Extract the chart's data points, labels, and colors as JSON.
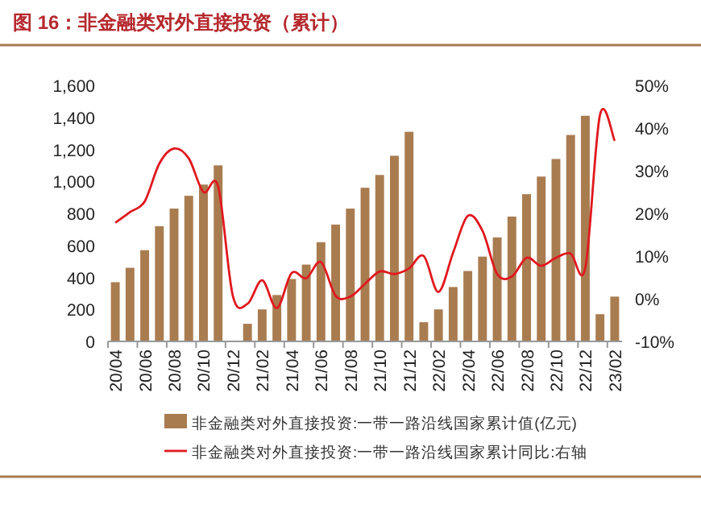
{
  "chart_data": {
    "type": "bar",
    "title": "图 16：非金融类对外直接投资（累计）",
    "categories": [
      "20/04",
      null,
      "20/06",
      null,
      "20/08",
      null,
      "20/10",
      null,
      "20/12",
      null,
      "21/02",
      null,
      "21/04",
      null,
      "21/06",
      null,
      "21/08",
      null,
      "21/10",
      null,
      "21/12",
      null,
      "22/02",
      null,
      "22/04",
      null,
      "22/06",
      null,
      "22/08",
      null,
      "22/10",
      null,
      "22/12",
      null,
      "23/02"
    ],
    "series": [
      {
        "name": "非金融类对外直接投资:一带一路沿线国家累计值(亿元)",
        "color": "#a97c50",
        "values": [
          370,
          460,
          570,
          720,
          830,
          910,
          980,
          1100,
          null,
          110,
          200,
          290,
          390,
          480,
          620,
          730,
          830,
          960,
          1040,
          1160,
          1310,
          120,
          200,
          340,
          440,
          530,
          650,
          780,
          920,
          1030,
          1140,
          1290,
          1410,
          170,
          280
        ]
      },
      {
        "name": "非金融类对外直接投资:一带一路沿线国家累计同比:右轴",
        "type": "line",
        "axis": "y2",
        "color": "#e0191f",
        "values": [
          17.8,
          20.3,
          22.8,
          31.7,
          35.2,
          32.9,
          25.0,
          26.3,
          0.7,
          -1.2,
          4.3,
          -2.2,
          6.0,
          4.8,
          8.6,
          0.7,
          0.5,
          3.5,
          6.4,
          5.8,
          7.1,
          10.0,
          1.6,
          10.8,
          19.4,
          15.9,
          5.8,
          5.2,
          9.6,
          7.7,
          9.6,
          10.6,
          7.3,
          43.1,
          37.0
        ]
      }
    ],
    "ylim": [
      0,
      1600
    ],
    "yticks": [
      0,
      200,
      400,
      600,
      800,
      {
        "value": 1000,
        "label": "1,000"
      },
      {
        "value": 1200,
        "label": "1,200"
      },
      {
        "value": 1400,
        "label": "1,400"
      },
      {
        "value": 1600,
        "label": "1,600"
      }
    ],
    "y2lim": [
      -10,
      50
    ],
    "y2ticks": [
      {
        "value": -10,
        "label": "-10%"
      },
      {
        "value": 0,
        "label": "0%"
      },
      {
        "value": 10,
        "label": "10%"
      },
      {
        "value": 20,
        "label": "20%"
      },
      {
        "value": 30,
        "label": "30%"
      },
      {
        "value": 40,
        "label": "40%"
      },
      {
        "value": 50,
        "label": "50%"
      }
    ],
    "legend": "bottom",
    "grid": false,
    "marker": "none",
    "line_style": "solid"
  }
}
